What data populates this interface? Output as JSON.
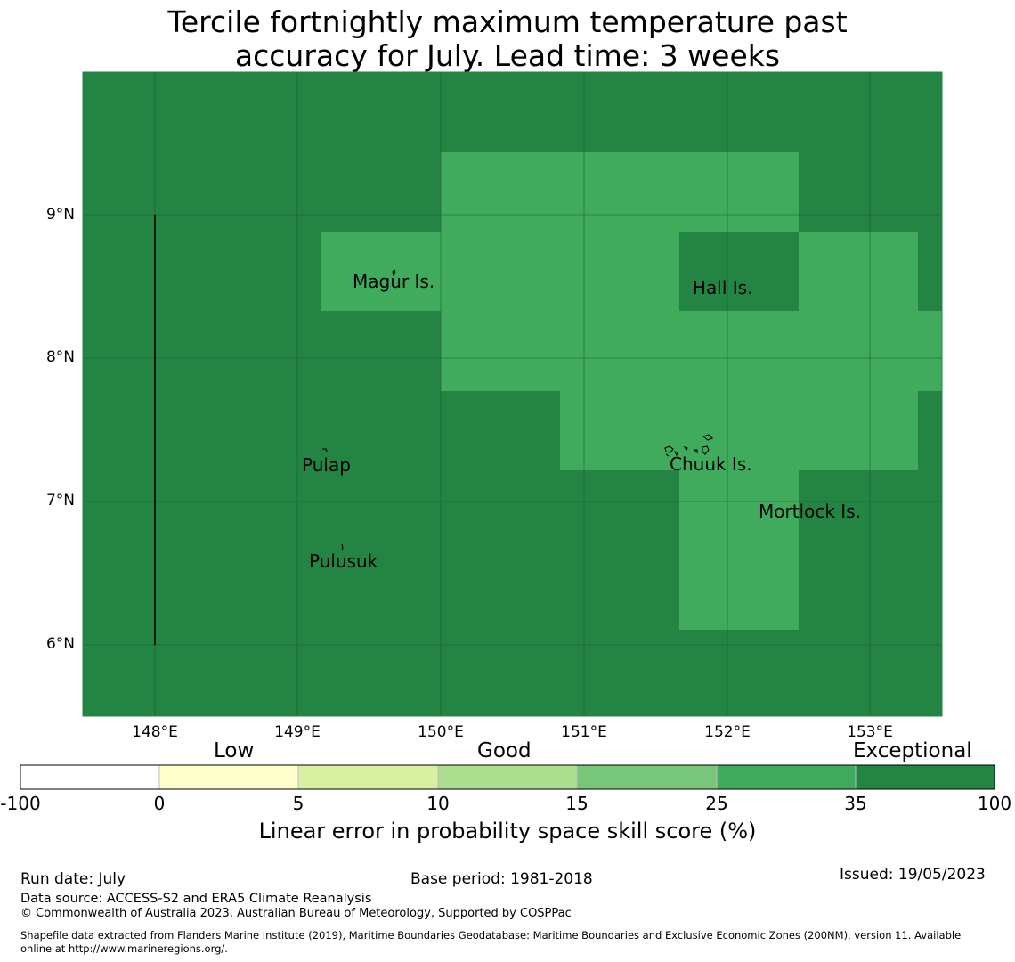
{
  "title": {
    "line1": "Tercile fortnightly maximum temperature past",
    "line2": "accuracy for July. Lead time: 3 weeks"
  },
  "map": {
    "lon_range": [
      147.5,
      153.5
    ],
    "lat_range": [
      5.5,
      10.0
    ],
    "lat_ticks": [
      "9°N",
      "8°N",
      "7°N",
      "6°N"
    ],
    "lon_ticks": [
      "148°E",
      "149°E",
      "150°E",
      "151°E",
      "152°E",
      "153°E"
    ],
    "places": [
      {
        "name": "Magur Is."
      },
      {
        "name": "Hall Is."
      },
      {
        "name": "Pulap"
      },
      {
        "name": "Chuuk Is."
      },
      {
        "name": "Mortlock Is."
      },
      {
        "name": "Pulusuk"
      }
    ],
    "colors": {
      "exceptional": "#238443",
      "good_high": "#41ab5d"
    }
  },
  "colorbar": {
    "categories": [
      "Low",
      "Good",
      "Exceptional"
    ],
    "ticks": [
      "-100",
      "0",
      "5",
      "10",
      "15",
      "25",
      "35",
      "100"
    ],
    "colors": [
      "#ffffff",
      "#ffffcc",
      "#d9f0a3",
      "#addd8e",
      "#78c679",
      "#41ab5d",
      "#238443"
    ],
    "label": "Linear error in probability space skill score (%)"
  },
  "footer": {
    "run_date": "Run date: July",
    "base_period": "Base period: 1981-2018",
    "issued": "Issued: 19/05/2023",
    "data_source": "Data source: ACCESS-S2 and ERA5 Climate Reanalysis",
    "copyright": "© Commonwealth of Australia 2023, Australian Bureau of Meteorology, Supported by COSPPac",
    "shapefile_line1": "Shapefile data extracted from Flanders Marine Institute (2019), Maritime Boundaries Geodatabase: Maritime Boundaries and Exclusive Economic Zones (200NM), version 11. Available",
    "shapefile_line2": "online at http://www.marineregions.org/."
  }
}
